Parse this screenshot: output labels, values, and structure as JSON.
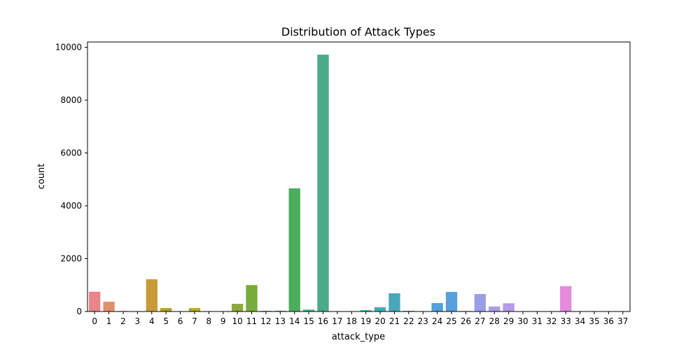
{
  "chart_data": {
    "type": "bar",
    "title": "Distribution of Attack Types",
    "xlabel": "attack_type",
    "ylabel": "count",
    "categories": [
      "0",
      "1",
      "2",
      "3",
      "4",
      "5",
      "6",
      "7",
      "8",
      "9",
      "10",
      "11",
      "12",
      "13",
      "14",
      "15",
      "16",
      "17",
      "18",
      "19",
      "20",
      "21",
      "22",
      "23",
      "24",
      "25",
      "26",
      "27",
      "28",
      "29",
      "30",
      "31",
      "32",
      "33",
      "34",
      "35",
      "36",
      "37"
    ],
    "values": [
      750,
      370,
      20,
      5,
      1220,
      130,
      5,
      130,
      3,
      3,
      290,
      1000,
      25,
      30,
      4660,
      70,
      9720,
      2,
      2,
      50,
      160,
      690,
      25,
      5,
      320,
      740,
      20,
      660,
      190,
      310,
      8,
      8,
      8,
      960,
      8,
      8,
      8,
      8
    ],
    "colors": [
      "#e8868a",
      "#e48f6c",
      "#d99a55",
      "#cba14d",
      "#c99a3a",
      "#b59e3a",
      "#a6a33a",
      "#b3a540",
      "#9aa838",
      "#8aad3a",
      "#8caa3b",
      "#77ac3c",
      "#63b04a",
      "#52b25f",
      "#4aae5c",
      "#4aae78",
      "#4aab87",
      "#48aa94",
      "#47a99f",
      "#46a9a9",
      "#47a8b2",
      "#48a8ba",
      "#4aa6c2",
      "#4ca4cc",
      "#52a1d8",
      "#5a9fdd",
      "#7a9de2",
      "#9a9ee5",
      "#a89ee6",
      "#b49be6",
      "#c497e4",
      "#d192e1",
      "#dc8ede",
      "#e68add",
      "#e58ac9",
      "#e68ab8",
      "#e88aa7",
      "#e98a98"
    ],
    "yticks": [
      0,
      2000,
      4000,
      6000,
      8000,
      10000
    ],
    "ylim": [
      0,
      10200
    ],
    "grid": false,
    "legend": "none"
  }
}
